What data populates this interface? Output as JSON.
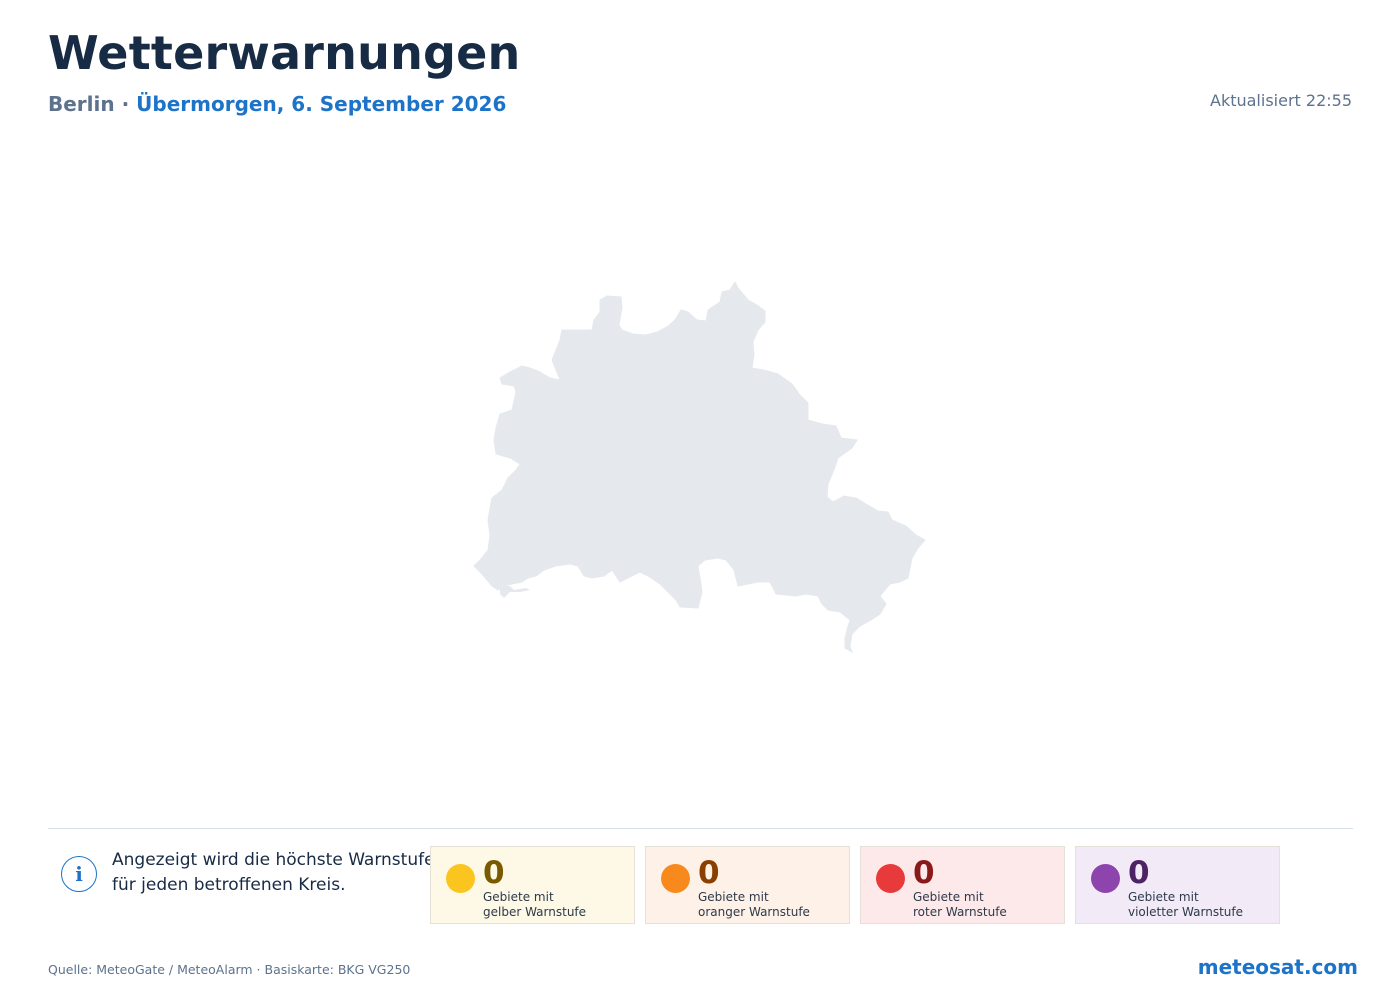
{
  "header": {
    "title": "Wetterwarnungen",
    "region": "Berlin",
    "separator": "·",
    "date": "Übermorgen, 6. September 2026",
    "updated": "Aktualisiert 22:55"
  },
  "map": {
    "region_fill": "#e5e9ee"
  },
  "info": {
    "line1": "Angezeigt wird die höchste Warnstufe",
    "line2": "für jeden betroffenen Kreis."
  },
  "warnings": [
    {
      "count": "0",
      "line1": "Gebiete mit",
      "line2": "gelber Warnstufe",
      "dot": "#fbc520",
      "bg": "#fef8e6",
      "text": "#7a5a00"
    },
    {
      "count": "0",
      "line1": "Gebiete mit",
      "line2": "oranger Warnstufe",
      "dot": "#f88a1d",
      "bg": "#fef1e8",
      "text": "#8a3f00"
    },
    {
      "count": "0",
      "line1": "Gebiete mit",
      "line2": "roter Warnstufe",
      "dot": "#e83a3a",
      "bg": "#fde9ea",
      "text": "#8a1a1a"
    },
    {
      "count": "0",
      "line1": "Gebiete mit",
      "line2": "violetter Warnstufe",
      "dot": "#8e44ad",
      "bg": "#f3eaf8",
      "text": "#4e2363"
    }
  ],
  "footer": {
    "source": "Quelle: MeteoGate / MeteoAlarm · Basiskarte: BKG VG250",
    "brand": "meteosat.com"
  }
}
